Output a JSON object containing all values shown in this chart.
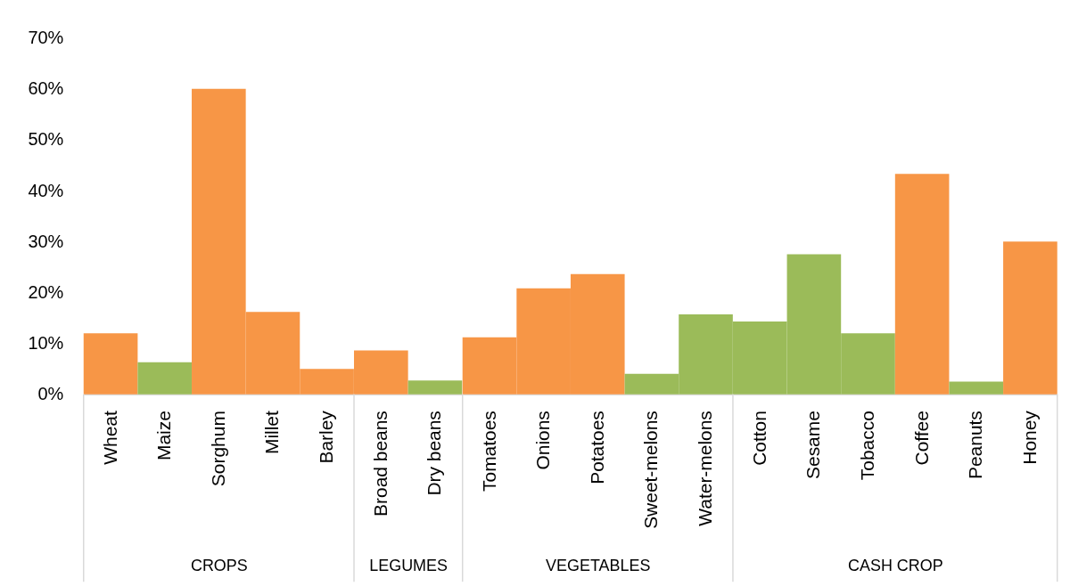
{
  "chart_data": [
    {
      "type": "bar",
      "xlabel": "CROPS",
      "categories": [
        "Wheat",
        "Maize",
        "Sorghum",
        "Millet",
        "Barley"
      ],
      "values": [
        12,
        6.3,
        60,
        16.2,
        5
      ],
      "colors": [
        "#f79646",
        "#9bbb59",
        "#f79646",
        "#f79646",
        "#f79646"
      ],
      "ylim": [
        0,
        70
      ],
      "yticks": [
        {
          "value": 0,
          "label": "0%"
        },
        {
          "value": 10,
          "label": "10%"
        },
        {
          "value": 20,
          "label": "20%"
        },
        {
          "value": 30,
          "label": "30%"
        },
        {
          "value": 40,
          "label": "40%"
        },
        {
          "value": 50,
          "label": "50%"
        },
        {
          "value": 60,
          "label": "60%"
        },
        {
          "value": 70,
          "label": "70%"
        }
      ],
      "grid": false
    },
    {
      "type": "bar",
      "xlabel": "LEGUMES",
      "categories": [
        "Broad beans",
        "Dry beans"
      ],
      "values": [
        8.6,
        2.7
      ],
      "colors": [
        "#f79646",
        "#9bbb59"
      ],
      "ylim": [
        0,
        70
      ],
      "grid": false,
      "tick_labels": "x"
    },
    {
      "type": "bar",
      "xlabel": "VEGETABLES",
      "categories": [
        "Tomatoes",
        "Onions",
        "Potatoes",
        "Sweet-melons",
        "Water-melons"
      ],
      "values": [
        11.2,
        20.8,
        23.6,
        4,
        15.7
      ],
      "colors": [
        "#f79646",
        "#f79646",
        "#f79646",
        "#9bbb59",
        "#9bbb59"
      ],
      "ylim": [
        0,
        70
      ],
      "grid": false,
      "tick_labels": "x"
    },
    {
      "type": "bar",
      "xlabel": "CASH CROP",
      "categories": [
        "Cotton",
        "Sesame",
        "Tobacco",
        "Coffee",
        "Peanuts",
        "Honey"
      ],
      "values": [
        14.3,
        27.5,
        12,
        43.3,
        2.5,
        30
      ],
      "colors": [
        "#9bbb59",
        "#9bbb59",
        "#9bbb59",
        "#f79646",
        "#9bbb59",
        "#f79646"
      ],
      "ylim": [
        0,
        70
      ],
      "grid": false,
      "tick_labels": "x"
    }
  ]
}
